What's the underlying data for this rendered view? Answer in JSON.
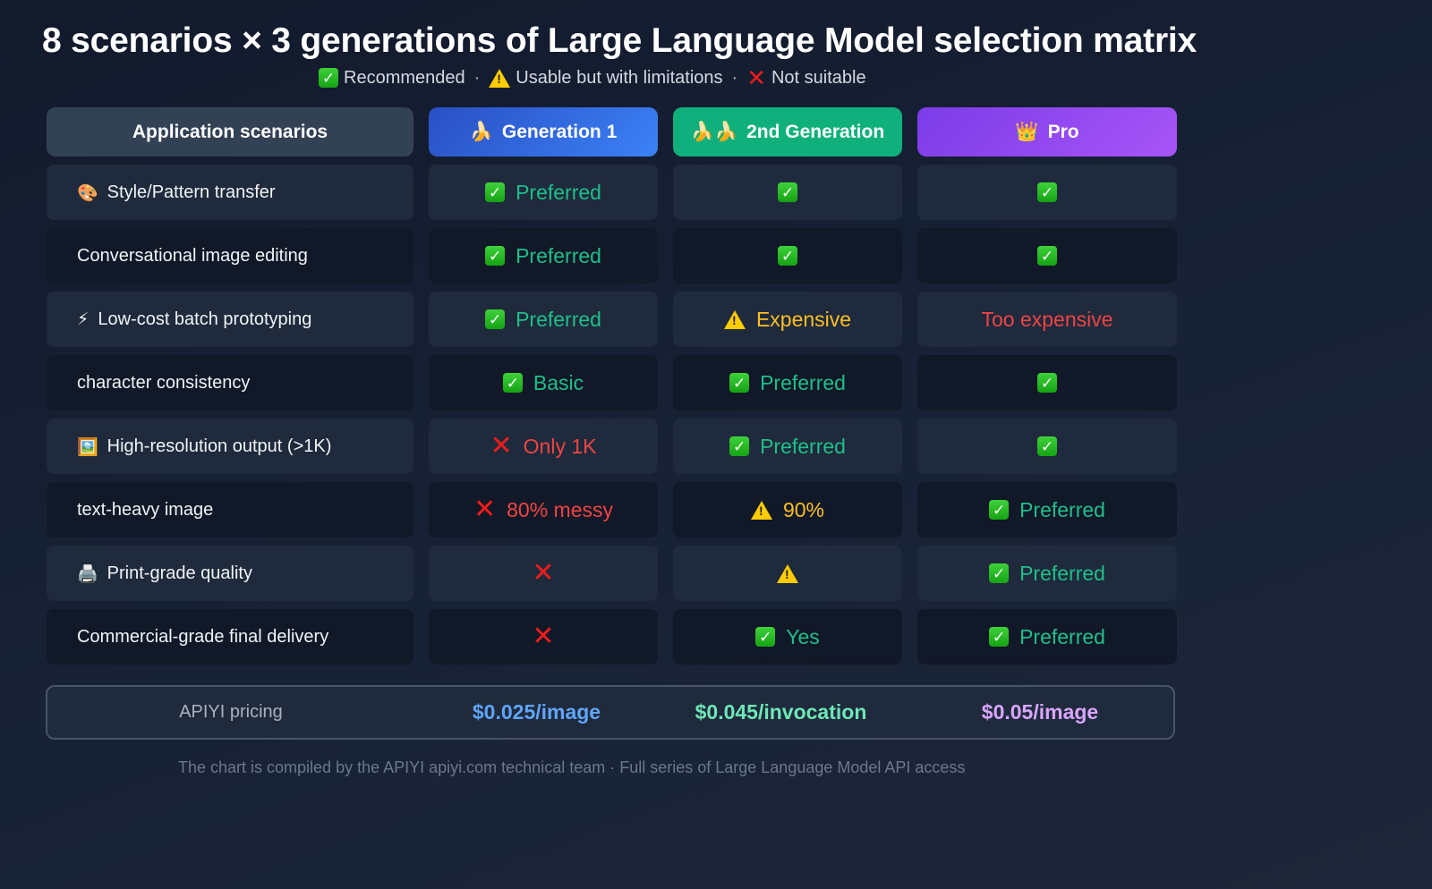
{
  "title": "8 scenarios × 3 generations of Large Language Model selection matrix",
  "legend": {
    "recommended": "Recommended",
    "limited": "Usable but with limitations",
    "not_suitable": "Not suitable",
    "separator": "·"
  },
  "header": {
    "scenario": "Application scenarios",
    "gen1": {
      "icon": "🍌",
      "label": "Generation 1",
      "color": "#3b82f6"
    },
    "gen2": {
      "icon": "🍌🍌",
      "label": "2nd Generation",
      "color": "#10b07c"
    },
    "pro": {
      "icon": "👑",
      "label": "Pro",
      "color": "#a855f7"
    }
  },
  "rows": [
    {
      "icon": "🎨",
      "scenario": "Style/Pattern transfer",
      "gen1": {
        "status": "good",
        "text": "Preferred"
      },
      "gen2": {
        "status": "good",
        "text": ""
      },
      "pro": {
        "status": "good",
        "text": ""
      }
    },
    {
      "icon": "",
      "scenario": "Conversational image editing",
      "gen1": {
        "status": "good",
        "text": "Preferred"
      },
      "gen2": {
        "status": "good",
        "text": ""
      },
      "pro": {
        "status": "good",
        "text": ""
      }
    },
    {
      "icon": "⚡",
      "scenario": "Low-cost batch prototyping",
      "gen1": {
        "status": "good",
        "text": "Preferred"
      },
      "gen2": {
        "status": "warn",
        "text": "Expensive"
      },
      "pro": {
        "status": "bad-text",
        "text": "Too expensive"
      }
    },
    {
      "icon": "",
      "scenario": "character consistency",
      "gen1": {
        "status": "good",
        "text": "Basic"
      },
      "gen2": {
        "status": "good",
        "text": "Preferred"
      },
      "pro": {
        "status": "good",
        "text": ""
      }
    },
    {
      "icon": "🖼️",
      "scenario": "High-resolution output (>1K)",
      "gen1": {
        "status": "bad",
        "text": "Only 1K"
      },
      "gen2": {
        "status": "good",
        "text": "Preferred"
      },
      "pro": {
        "status": "good",
        "text": ""
      }
    },
    {
      "icon": "",
      "scenario": "text-heavy image",
      "gen1": {
        "status": "bad",
        "text": "80% messy"
      },
      "gen2": {
        "status": "warn",
        "text": "90%"
      },
      "pro": {
        "status": "good",
        "text": "Preferred"
      }
    },
    {
      "icon": "🖨️",
      "scenario": "Print-grade quality",
      "gen1": {
        "status": "bad",
        "text": ""
      },
      "gen2": {
        "status": "warn",
        "text": ""
      },
      "pro": {
        "status": "good",
        "text": "Preferred"
      }
    },
    {
      "icon": "",
      "scenario": "Commercial-grade final delivery",
      "gen1": {
        "status": "bad",
        "text": ""
      },
      "gen2": {
        "status": "good",
        "text": "Yes"
      },
      "pro": {
        "status": "good",
        "text": "Preferred"
      }
    }
  ],
  "pricing": {
    "label": "APIYI pricing",
    "gen1": "$0.025/image",
    "gen2": "$0.045/invocation",
    "pro": "$0.05/image"
  },
  "footer": "The chart is compiled by the APIYI apiyi.com technical team · Full series of Large Language Model API access",
  "chart_data": {
    "type": "table",
    "title": "8 scenarios × 3 generations of Large Language Model selection matrix",
    "legend": [
      "✅ Recommended",
      "⚠️ Usable but with limitations",
      "❌ Not suitable"
    ],
    "columns": [
      "Application scenarios",
      "Generation 1",
      "2nd Generation",
      "Pro"
    ],
    "rows": [
      [
        "Style/Pattern transfer",
        "✅ Preferred",
        "✅",
        "✅"
      ],
      [
        "Conversational image editing",
        "✅ Preferred",
        "✅",
        "✅"
      ],
      [
        "Low-cost batch prototyping",
        "✅ Preferred",
        "⚠️ Expensive",
        "Too expensive"
      ],
      [
        "character consistency",
        "✅ Basic",
        "✅ Preferred",
        "✅"
      ],
      [
        "High-resolution output (>1K)",
        "❌ Only 1K",
        "✅ Preferred",
        "✅"
      ],
      [
        "text-heavy image",
        "❌ 80% messy",
        "⚠️ 90%",
        "✅ Preferred"
      ],
      [
        "Print-grade quality",
        "❌",
        "⚠️",
        "✅ Preferred"
      ],
      [
        "Commercial-grade final delivery",
        "❌",
        "✅ Yes",
        "✅ Preferred"
      ]
    ],
    "footer_row": [
      "APIYI pricing",
      "$0.025/image",
      "$0.045/invocation",
      "$0.05/image"
    ]
  }
}
